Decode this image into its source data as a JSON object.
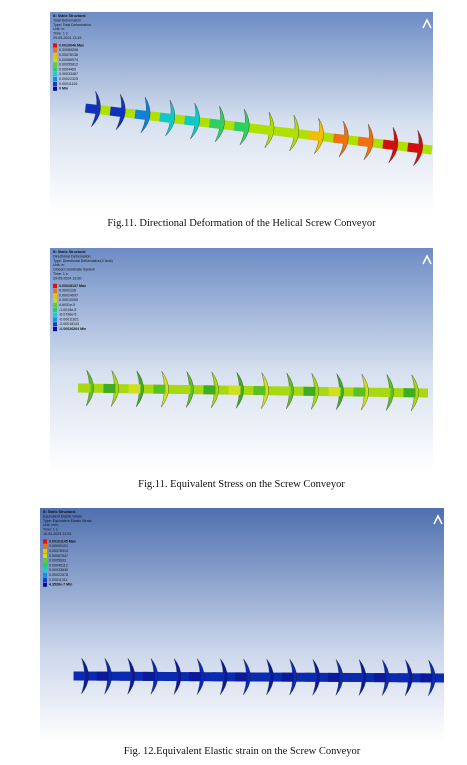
{
  "figures": [
    {
      "header": [
        "B: Static Structural",
        "Total Deformation",
        "Type: Total Deformation",
        "Unit: m",
        "Time: 1 s",
        "29-05-2024 13:19"
      ],
      "legend": [
        "0.0010046 Max",
        "0.00089298",
        "0.00078136",
        "0.00066974",
        "0.00055812",
        "0.0004465",
        "0.00033487",
        "0.00022325",
        "0.00011162",
        "0 Min"
      ],
      "caption": "Fig.11. Directional Deformation of the Helical Screw Conveyor"
    },
    {
      "header": [
        "B: Static Structural",
        "Directional Deformation",
        "Type: Directional Deformation(X Axis)",
        "Unit: m",
        "Global Coordinate System",
        "Time: 1 s",
        "29-05-2024 13:30"
      ],
      "legend": [
        "0.00028137 Max",
        "0.0002126",
        "0.00014097",
        "0.00010095",
        "4.6031e-5",
        "-1.0015e-5",
        "-6.0796e-5",
        "-0.00011821",
        "-0.00018143",
        "-0.00026264 Min"
      ],
      "caption": "Fig.11. Equivalent Stress on the Screw Conveyor"
    },
    {
      "header": [
        "B: Static Structural",
        "Equivalent Elastic Strain",
        "Type: Equivalent Elastic Strain",
        "Unit: m/m",
        "Time: 1 s",
        "16-04-2024 12:53"
      ],
      "legend": [
        "0.00101145 Max",
        "0.00090101",
        "0.00078914",
        "0.00067647",
        "0.0005633",
        "0.00045112",
        "0.00033845",
        "0.00022578",
        "0.00011311",
        "4.3539e-7 Min"
      ],
      "caption": "Fig. 12.Equivalent Elastic strain on the Screw Conveyor"
    }
  ]
}
